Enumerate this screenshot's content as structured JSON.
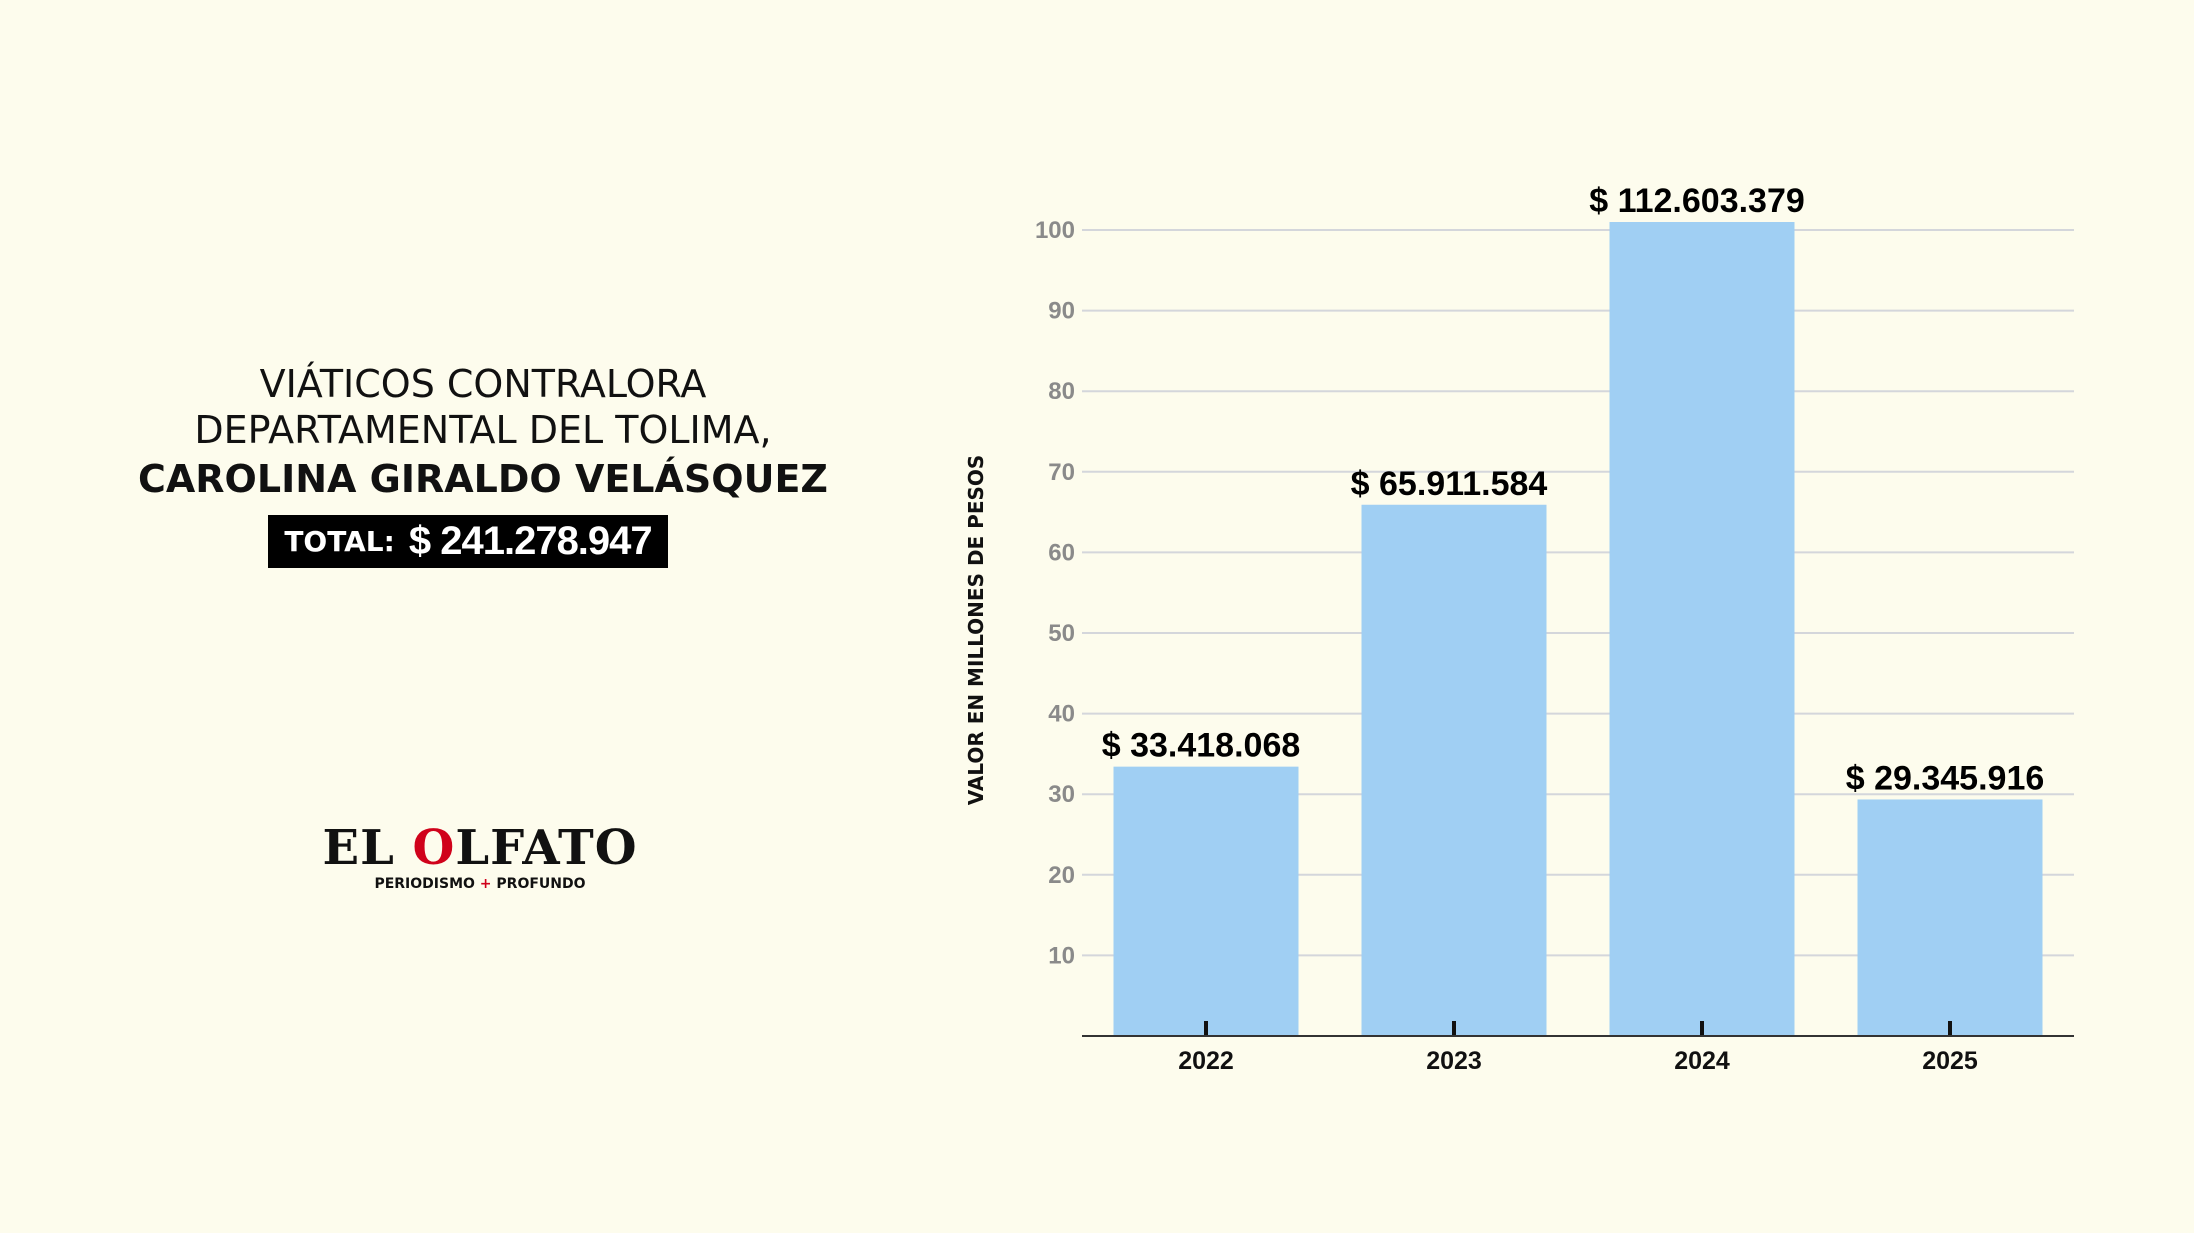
{
  "header": {
    "title_line1": "VIÁTICOS CONTRALORA",
    "title_line2": "DEPARTAMENTAL DEL TOLIMA,",
    "title_line3": "CAROLINA GIRALDO VELÁSQUEZ",
    "total_label": "TOTAL:",
    "total_value": "$ 241.278.947"
  },
  "logo": {
    "name_part1": "EL ",
    "name_accent": "O",
    "name_part2": "LFATO",
    "tagline_left": "PERIODISMO",
    "tagline_plus": "+",
    "tagline_right": "PROFUNDO"
  },
  "colors": {
    "background": "#fdfced",
    "bar": "#a0cff3",
    "accent_red": "#d0021b",
    "grid": "#d4d6db"
  },
  "chart_data": {
    "type": "bar",
    "categories": [
      "2022",
      "2023",
      "2024",
      "2025"
    ],
    "values": [
      33.418068,
      65.911584,
      112.603379,
      29.345916
    ],
    "data_labels": [
      "$ 33.418.068",
      "$ 65.911.584",
      "$ 112.603.379",
      "$ 29.345.916"
    ],
    "ylabel": "VALOR EN MILLONES DE PESOS",
    "xlabel": "",
    "yticks": [
      10,
      20,
      30,
      40,
      50,
      60,
      70,
      80,
      90,
      100
    ],
    "grid": true
  }
}
